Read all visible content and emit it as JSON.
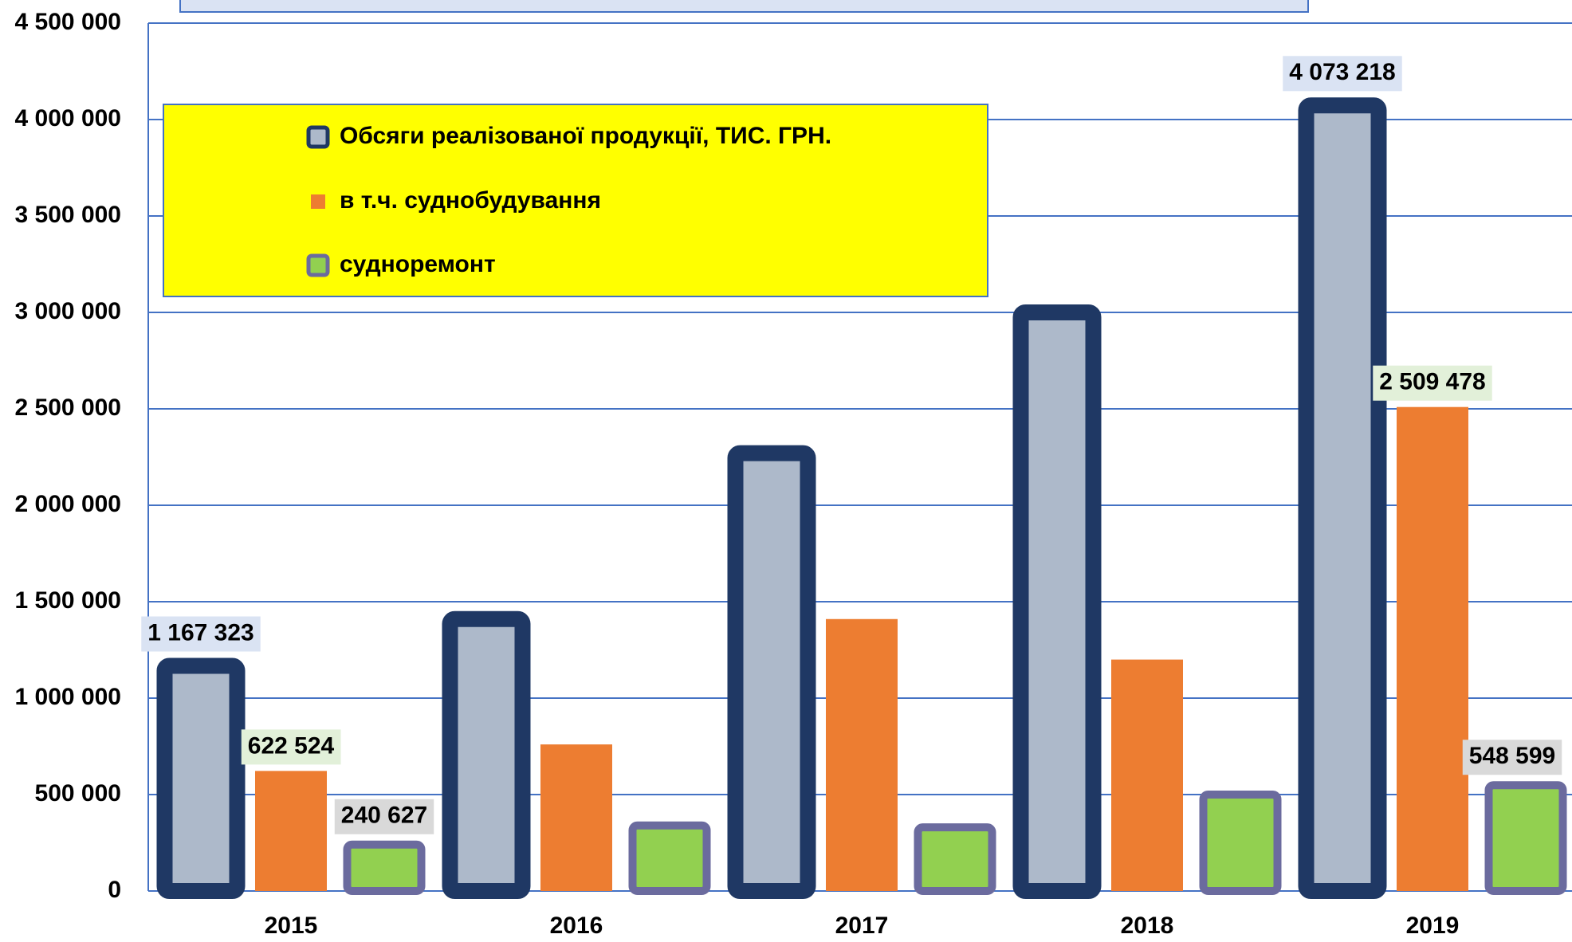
{
  "chart_data": {
    "type": "bar",
    "categories": [
      "2015",
      "2016",
      "2017",
      "2018",
      "2019"
    ],
    "series": [
      {
        "name": "Обсяги реалізованої продукції, ТИС. ГРН.",
        "color": "#adb9ca",
        "edgecolor": "#1f3864",
        "values": [
          1167323,
          1410000,
          2270000,
          3000000,
          4073218
        ],
        "value_labels": [
          "1 167 323",
          null,
          null,
          null,
          "4 073 218"
        ]
      },
      {
        "name": "в т.ч. суднобудування",
        "color": "#ed7d31",
        "edgecolor": "#ed7d31",
        "values": [
          622524,
          760000,
          1410000,
          1200000,
          2509478
        ],
        "value_labels": [
          "622 524",
          null,
          null,
          null,
          "2 509 478"
        ]
      },
      {
        "name": "судноремонт",
        "color": "#92d050",
        "edgecolor": "#6b6b9e",
        "values": [
          240627,
          340000,
          330000,
          500000,
          548599
        ],
        "value_labels": [
          "240 627",
          null,
          null,
          null,
          "548 599"
        ]
      }
    ],
    "ylim": [
      0,
      4500000
    ],
    "yticks": [
      0,
      {
        "value": 500000,
        "label": "500 000"
      },
      {
        "value": 1000000,
        "label": "1 000 000"
      },
      {
        "value": 1500000,
        "label": "1 500 000"
      },
      {
        "value": 2000000,
        "label": "2 000 000"
      },
      {
        "value": 2500000,
        "label": "2 500 000"
      },
      {
        "value": 3000000,
        "label": "3 000 000"
      },
      {
        "value": 3500000,
        "label": "3 500 000"
      },
      {
        "value": 4000000,
        "label": "4 000 000"
      },
      {
        "value": 4500000,
        "label": "4 500 000"
      }
    ],
    "grid": true,
    "legend": "upper left"
  }
}
